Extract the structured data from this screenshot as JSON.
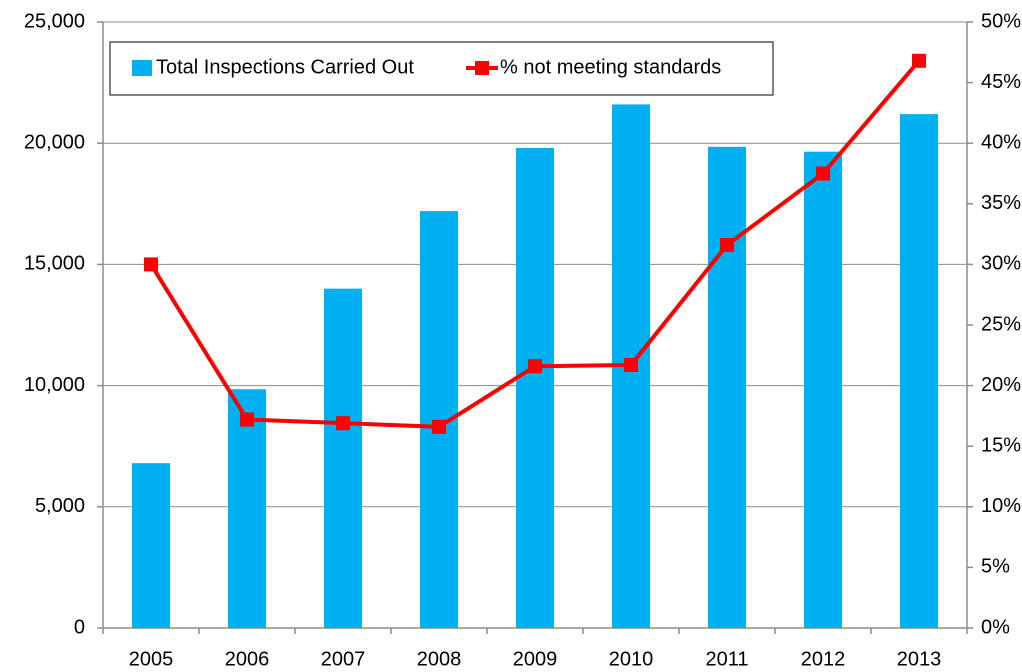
{
  "chart_data": {
    "type": "bar",
    "categories": [
      "2005",
      "2006",
      "2007",
      "2008",
      "2009",
      "2010",
      "2011",
      "2012",
      "2013"
    ],
    "series": [
      {
        "name": "Total Inspections Carried Out",
        "color": "#00b0f0",
        "type": "bar",
        "values": [
          6800,
          9850,
          14000,
          17200,
          19800,
          21600,
          19850,
          19650,
          21200
        ]
      },
      {
        "name": "% not meeting standards",
        "color": "#ff0000",
        "type": "line",
        "axis": "y2",
        "values": [
          30,
          17.2,
          16.9,
          16.6,
          21.6,
          21.7,
          31.6,
          37.5,
          46.8
        ]
      }
    ],
    "ylim": [
      0,
      25000
    ],
    "yticks": [
      0,
      {
        "value": 5000,
        "label": "5,000"
      },
      {
        "value": 10000,
        "label": "10,000"
      },
      {
        "value": 15000,
        "label": "15,000"
      },
      {
        "value": 20000,
        "label": "20,000"
      },
      {
        "value": 25000,
        "label": "25,000"
      }
    ],
    "y2lim": [
      0,
      50
    ],
    "y2ticks": [
      {
        "value": 0,
        "label": "0%"
      },
      {
        "value": 5,
        "label": "5%"
      },
      {
        "value": 10,
        "label": "10%"
      },
      {
        "value": 15,
        "label": "15%"
      },
      {
        "value": 20,
        "label": "20%"
      },
      {
        "value": 25,
        "label": "25%"
      },
      {
        "value": 30,
        "label": "30%"
      },
      {
        "value": 35,
        "label": "35%"
      },
      {
        "value": 40,
        "label": "40%"
      },
      {
        "value": 45,
        "label": "45%"
      },
      {
        "value": 50,
        "label": "50%"
      }
    ],
    "grid": true,
    "legend": "top"
  }
}
